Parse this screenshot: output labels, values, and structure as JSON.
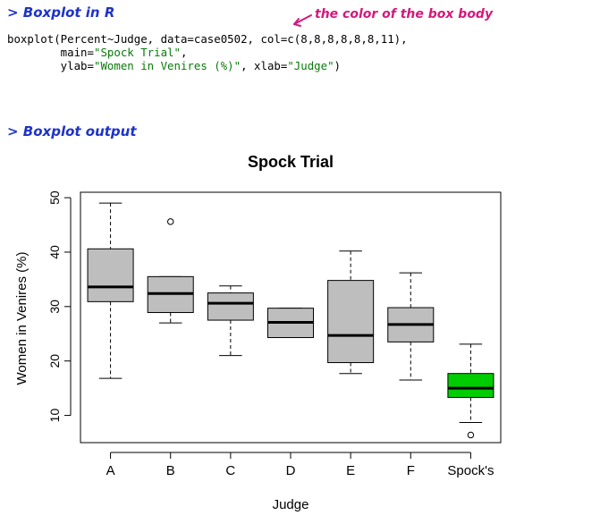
{
  "notes": {
    "heading_code": "> Boxplot in R",
    "heading_output": "> Boxplot output",
    "annotation": "the color of the box body"
  },
  "code": {
    "line1": "boxplot(Percent~Judge, data=case0502, col=c(8,8,8,8,8,8,11),",
    "line2_pre": "        main=",
    "line2_str": "\"Spock Trial\"",
    "line2_post": ",",
    "line3_pre": "        ylab=",
    "line3_str": "\"Women in Venires (%)\"",
    "line3_mid": ", xlab=",
    "line3_str2": "\"Judge\"",
    "line3_post": ")"
  },
  "colors": {
    "box_default": "#bebebe",
    "box_highlight": "#00cd00",
    "note_blue": "#1f33c8",
    "note_pink": "#d4187d",
    "string_green": "#0a7a0a"
  },
  "chart_data": {
    "type": "boxplot",
    "title": "Spock Trial",
    "xlabel": "Judge",
    "ylabel": "Women in Venires (%)",
    "ylim": [
      5,
      51
    ],
    "yticks": [
      10,
      20,
      30,
      40,
      50
    ],
    "categories": [
      "A",
      "B",
      "C",
      "D",
      "E",
      "F",
      "Spock's"
    ],
    "boxes": [
      {
        "min": 16.8,
        "q1": 30.9,
        "median": 33.6,
        "q3": 40.6,
        "max": 49.0,
        "outliers": [],
        "color": "#bebebe"
      },
      {
        "min": 27.0,
        "q1": 28.9,
        "median": 32.4,
        "q3": 35.5,
        "max": 35.5,
        "outliers": [
          45.6
        ],
        "color": "#bebebe"
      },
      {
        "min": 21.0,
        "q1": 27.5,
        "median": 30.6,
        "q3": 32.5,
        "max": 33.8,
        "outliers": [],
        "color": "#bebebe"
      },
      {
        "min": 24.3,
        "q1": 24.3,
        "median": 27.1,
        "q3": 29.7,
        "max": 29.7,
        "outliers": [],
        "color": "#bebebe"
      },
      {
        "min": 17.7,
        "q1": 19.7,
        "median": 24.7,
        "q3": 34.8,
        "max": 40.2,
        "outliers": [],
        "color": "#bebebe"
      },
      {
        "min": 16.5,
        "q1": 23.5,
        "median": 26.7,
        "q3": 29.8,
        "max": 36.2,
        "outliers": [],
        "color": "#bebebe"
      },
      {
        "min": 8.7,
        "q1": 13.3,
        "median": 15.0,
        "q3": 17.7,
        "max": 23.1,
        "outliers": [
          6.4
        ],
        "color": "#00cd00"
      }
    ]
  }
}
